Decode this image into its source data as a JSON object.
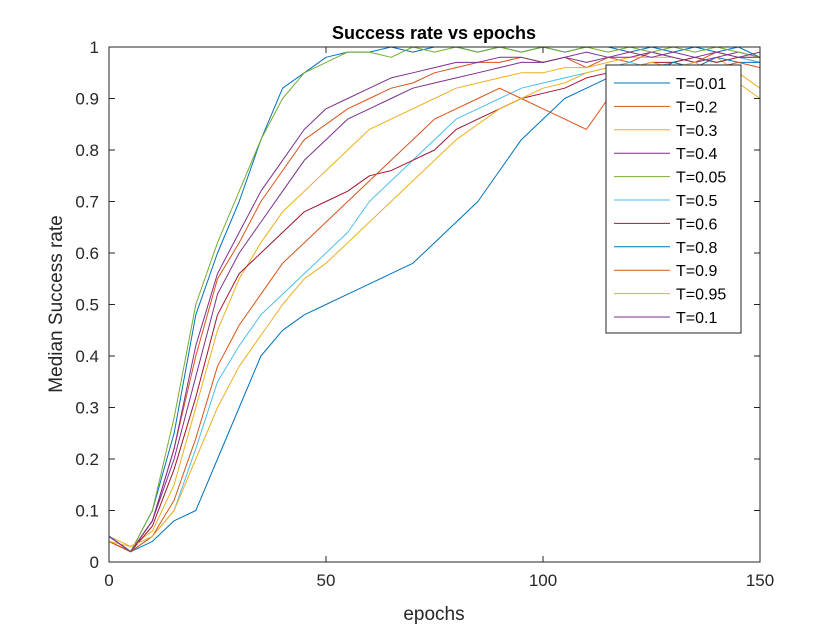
{
  "chart_data": {
    "type": "line",
    "title": "Success rate vs epochs",
    "xlabel": "epochs",
    "ylabel": "Median Success rate",
    "xlim": [
      0,
      150
    ],
    "ylim": [
      0,
      1
    ],
    "xticks": [
      0,
      50,
      100,
      150
    ],
    "yticks": [
      0,
      0.1,
      0.2,
      0.3,
      0.4,
      0.5,
      0.6,
      0.7,
      0.8,
      0.9,
      1
    ],
    "grid": false,
    "legend_location": "top-right",
    "x": [
      0,
      5,
      10,
      15,
      20,
      25,
      30,
      35,
      40,
      45,
      50,
      55,
      60,
      65,
      70,
      75,
      80,
      85,
      90,
      95,
      100,
      105,
      110,
      115,
      120,
      125,
      130,
      135,
      140,
      145,
      150
    ],
    "series": [
      {
        "name": "T=0.01",
        "color": "#0072BD",
        "values": [
          0.05,
          0.02,
          0.1,
          0.25,
          0.48,
          0.6,
          0.7,
          0.82,
          0.92,
          0.95,
          0.98,
          0.99,
          0.99,
          1.0,
          0.99,
          1.0,
          1.0,
          0.99,
          1.0,
          0.99,
          1.0,
          0.99,
          1.0,
          1.0,
          0.99,
          1.0,
          0.99,
          1.0,
          0.99,
          1.0,
          0.98
        ]
      },
      {
        "name": "T=0.2",
        "color": "#D95319",
        "values": [
          0.04,
          0.02,
          0.08,
          0.22,
          0.4,
          0.55,
          0.62,
          0.7,
          0.76,
          0.82,
          0.85,
          0.88,
          0.9,
          0.92,
          0.93,
          0.95,
          0.96,
          0.97,
          0.97,
          0.98,
          0.97,
          0.98,
          0.96,
          0.98,
          0.97,
          0.99,
          0.98,
          0.97,
          0.99,
          0.98,
          0.97
        ]
      },
      {
        "name": "T=0.3",
        "color": "#EDB120",
        "values": [
          0.05,
          0.03,
          0.06,
          0.15,
          0.3,
          0.45,
          0.55,
          0.62,
          0.68,
          0.72,
          0.76,
          0.8,
          0.84,
          0.86,
          0.88,
          0.9,
          0.92,
          0.93,
          0.94,
          0.95,
          0.95,
          0.96,
          0.96,
          0.97,
          0.98,
          0.98,
          0.98,
          0.97,
          0.98,
          0.95,
          0.92
        ]
      },
      {
        "name": "T=0.4",
        "color": "#7E2F8E",
        "values": [
          0.05,
          0.02,
          0.08,
          0.2,
          0.36,
          0.52,
          0.6,
          0.66,
          0.72,
          0.78,
          0.82,
          0.86,
          0.88,
          0.9,
          0.92,
          0.93,
          0.94,
          0.95,
          0.96,
          0.97,
          0.97,
          0.98,
          0.97,
          0.98,
          0.98,
          0.99,
          0.98,
          0.97,
          0.98,
          0.99,
          0.98
        ]
      },
      {
        "name": "T=0.05",
        "color": "#77AC30",
        "values": [
          0.04,
          0.02,
          0.1,
          0.28,
          0.5,
          0.62,
          0.72,
          0.82,
          0.9,
          0.95,
          0.97,
          0.99,
          0.99,
          0.98,
          1.0,
          0.99,
          1.0,
          0.99,
          1.0,
          0.99,
          1.0,
          0.99,
          1.0,
          0.99,
          1.0,
          0.99,
          1.0,
          0.99,
          1.0,
          0.99,
          0.98
        ]
      },
      {
        "name": "T=0.5",
        "color": "#4DBEEE",
        "values": [
          0.05,
          0.02,
          0.05,
          0.1,
          0.22,
          0.35,
          0.42,
          0.48,
          0.52,
          0.56,
          0.6,
          0.64,
          0.7,
          0.74,
          0.78,
          0.82,
          0.86,
          0.88,
          0.9,
          0.92,
          0.93,
          0.94,
          0.95,
          0.96,
          0.97,
          0.96,
          0.97,
          0.98,
          0.97,
          0.98,
          0.97
        ]
      },
      {
        "name": "T=0.6",
        "color": "#A2142F",
        "values": [
          0.04,
          0.02,
          0.07,
          0.18,
          0.32,
          0.48,
          0.56,
          0.6,
          0.64,
          0.68,
          0.7,
          0.72,
          0.75,
          0.76,
          0.78,
          0.8,
          0.84,
          0.86,
          0.88,
          0.9,
          0.91,
          0.92,
          0.94,
          0.95,
          0.96,
          0.97,
          0.97,
          0.98,
          0.97,
          0.98,
          0.98
        ]
      },
      {
        "name": "T=0.8",
        "color": "#0072BD",
        "values": [
          0.05,
          0.02,
          0.04,
          0.08,
          0.1,
          0.2,
          0.3,
          0.4,
          0.45,
          0.48,
          0.5,
          0.52,
          0.54,
          0.56,
          0.58,
          0.62,
          0.66,
          0.7,
          0.76,
          0.82,
          0.86,
          0.9,
          0.92,
          0.94,
          0.96,
          0.95,
          0.97,
          0.96,
          0.98,
          0.97,
          0.97
        ]
      },
      {
        "name": "T=0.9",
        "color": "#D95319",
        "values": [
          0.04,
          0.02,
          0.05,
          0.12,
          0.24,
          0.38,
          0.46,
          0.52,
          0.58,
          0.62,
          0.66,
          0.7,
          0.74,
          0.78,
          0.82,
          0.86,
          0.88,
          0.9,
          0.92,
          0.9,
          0.88,
          0.86,
          0.84,
          0.9,
          0.92,
          0.94,
          0.96,
          0.95,
          0.96,
          0.97,
          0.96
        ]
      },
      {
        "name": "T=0.95",
        "color": "#EDB120",
        "values": [
          0.04,
          0.03,
          0.05,
          0.1,
          0.2,
          0.3,
          0.38,
          0.44,
          0.5,
          0.55,
          0.58,
          0.62,
          0.66,
          0.7,
          0.74,
          0.78,
          0.82,
          0.85,
          0.88,
          0.9,
          0.92,
          0.93,
          0.95,
          0.96,
          0.96,
          0.97,
          0.96,
          0.97,
          0.95,
          0.93,
          0.9
        ]
      },
      {
        "name": "T=0.1",
        "color": "#7E2F8E",
        "values": [
          0.05,
          0.02,
          0.08,
          0.22,
          0.42,
          0.56,
          0.64,
          0.72,
          0.78,
          0.84,
          0.88,
          0.9,
          0.92,
          0.94,
          0.95,
          0.96,
          0.97,
          0.97,
          0.98,
          0.98,
          0.97,
          0.98,
          0.99,
          0.98,
          0.99,
          0.98,
          0.99,
          0.98,
          0.99,
          0.98,
          0.99
        ]
      }
    ]
  }
}
